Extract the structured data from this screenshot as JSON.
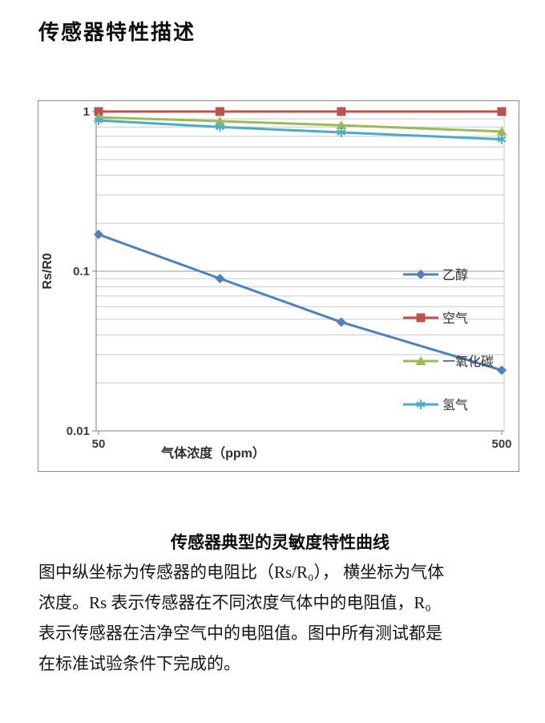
{
  "page": {
    "title": "传感器特性描述",
    "caption": "传感器典型的灵敏度特性曲线",
    "paragraph_lines": [
      "图中纵坐标为传感器的电阻比（Rs/R₀）， 横坐标为气体",
      "浓度。Rs 表示传感器在不同浓度气体中的电阻值，R₀",
      "表示传感器在洁净空气中的电阻值。图中所有测试都是",
      "在标准试验条件下完成的。"
    ]
  },
  "chart_data": {
    "type": "line",
    "title": "传感器典型的灵敏度特性曲线",
    "x": [
      50,
      100,
      200,
      500
    ],
    "series": [
      {
        "name": "乙醇",
        "color": "#4f81bd",
        "marker": "diamond",
        "values": [
          0.17,
          0.09,
          0.048,
          0.024
        ]
      },
      {
        "name": "空气",
        "color": "#c0504d",
        "marker": "square",
        "values": [
          1.0,
          1.0,
          1.0,
          1.0
        ]
      },
      {
        "name": "一氧化碳",
        "color": "#9bbb59",
        "marker": "triangle",
        "values": [
          0.92,
          0.87,
          0.82,
          0.75
        ]
      },
      {
        "name": "氢气",
        "color": "#4bacc6",
        "marker": "asterisk",
        "values": [
          0.88,
          0.8,
          0.74,
          0.67
        ]
      }
    ],
    "xlabel": "气体浓度（ppm）",
    "ylabel": "Rs/R0",
    "x_ticks": [
      50,
      500
    ],
    "y_ticks": [
      1,
      0.1,
      0.01
    ],
    "xlim": [
      50,
      500
    ],
    "ylim": [
      0.01,
      1
    ],
    "x_scale": "log",
    "y_scale": "log",
    "grid": "horizontal-log-minor",
    "legend_position": "right-inside"
  }
}
